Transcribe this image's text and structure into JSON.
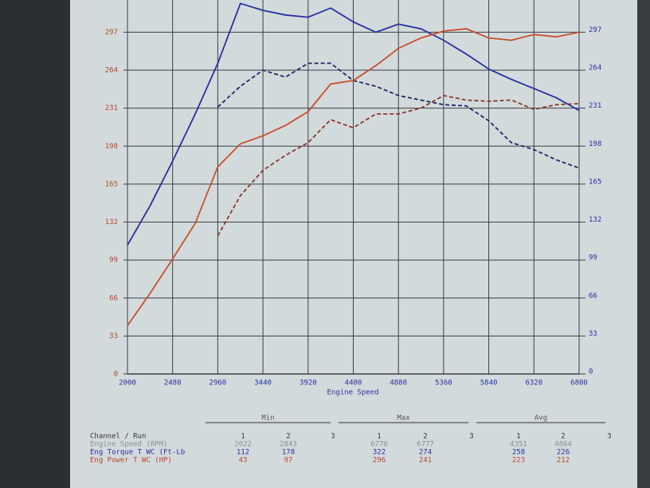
{
  "chart_data": {
    "type": "line",
    "x_label": "Engine Speed",
    "x": [
      2000,
      2240,
      2480,
      2720,
      2960,
      3200,
      3440,
      3680,
      3920,
      4160,
      4400,
      4640,
      4880,
      5120,
      5360,
      5600,
      5840,
      6080,
      6320,
      6560,
      6800
    ],
    "xlim": [
      2000,
      6800
    ],
    "xticks": [
      2000,
      2480,
      2960,
      3440,
      3920,
      4400,
      4880,
      5360,
      5840,
      6320,
      6800
    ],
    "ylim": [
      0,
      325
    ],
    "yticks": [
      0,
      33,
      66,
      99,
      132,
      165,
      198,
      231,
      264,
      297
    ],
    "y2lim": [
      0,
      325
    ],
    "y2ticks": [
      0,
      33,
      66,
      99,
      132,
      165,
      198,
      231,
      264,
      297
    ],
    "grid": true,
    "series": [
      {
        "color": "#2631a0",
        "style": "solid",
        "axis": "y2",
        "values": [
          112,
          146,
          185,
          226,
          270,
          322,
          316,
          312,
          310,
          318,
          306,
          297,
          304,
          300,
          290,
          278,
          265,
          256,
          248,
          240,
          229
        ]
      },
      {
        "color": "#1e2a6a",
        "style": "dashed",
        "axis": "y2",
        "values": [
          null,
          null,
          null,
          null,
          232,
          250,
          264,
          258,
          270,
          270,
          255,
          250,
          242,
          238,
          234,
          233,
          220,
          201,
          195,
          186,
          179
        ]
      },
      {
        "color": "#c8502e",
        "style": "solid",
        "values": [
          42,
          70,
          100,
          131,
          180,
          200,
          207,
          216,
          228,
          252,
          255,
          268,
          283,
          292,
          298,
          300,
          292,
          290,
          295,
          293,
          297
        ]
      },
      {
        "color": "#8a3a2a",
        "style": "dashed",
        "values": [
          null,
          null,
          null,
          null,
          120,
          155,
          177,
          190,
          201,
          221,
          214,
          226,
          226,
          231,
          242,
          238,
          237,
          238,
          230,
          234,
          235
        ]
      }
    ]
  },
  "table": {
    "header": "Channel / Run",
    "groups": [
      {
        "title": "Min",
        "runs": [
          "1",
          "2",
          "3"
        ]
      },
      {
        "title": "Max",
        "runs": [
          "1",
          "2",
          "3"
        ]
      },
      {
        "title": "Avg",
        "runs": [
          "1",
          "2",
          "3"
        ]
      }
    ],
    "rows": [
      {
        "label": "Engine Speed (RPM)",
        "cells": [
          [
            2022,
            2843
          ],
          [
            6770,
            6777
          ],
          [
            4351,
            4864
          ]
        ]
      },
      {
        "label": "Eng Torque T WC (Ft-Lb",
        "cells": [
          [
            112,
            178
          ],
          [
            322,
            274
          ],
          [
            258,
            226
          ]
        ]
      },
      {
        "label": "Eng Power T WC (HP)",
        "cells": [
          [
            43,
            97
          ],
          [
            296,
            241
          ],
          [
            223,
            212
          ]
        ]
      }
    ]
  }
}
